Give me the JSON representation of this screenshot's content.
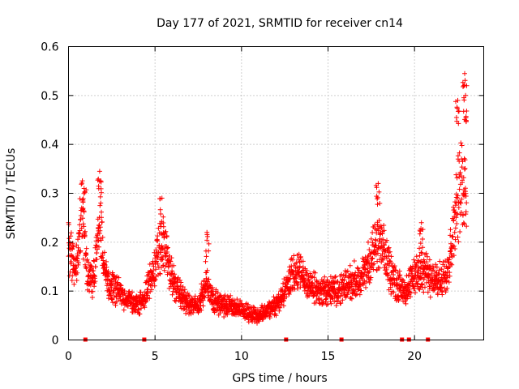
{
  "chart_data": {
    "type": "scatter",
    "title": "Day 177 of 2021, SRMTID for receiver cn14",
    "xlabel": "GPS time / hours",
    "ylabel": "SRMTID / TECUs",
    "xlim": [
      0,
      24
    ],
    "ylim": [
      0,
      0.6
    ],
    "xticks": [
      0,
      5,
      10,
      15,
      20
    ],
    "xtick_labels": [
      "0",
      "5",
      "10",
      "15",
      "20"
    ],
    "yticks": [
      0,
      0.1,
      0.2,
      0.3,
      0.4,
      0.5,
      0.6
    ],
    "ytick_labels": [
      "0",
      "0.1",
      "0.2",
      "0.3",
      "0.4",
      "0.5",
      "0.6"
    ],
    "grid": true,
    "marker": "+",
    "color": "#ff0000",
    "series": [
      {
        "name": "SRMTID",
        "profile": [
          [
            0.0,
            0.19
          ],
          [
            0.2,
            0.17
          ],
          [
            0.4,
            0.14
          ],
          [
            0.6,
            0.2
          ],
          [
            0.75,
            0.27
          ],
          [
            0.9,
            0.22
          ],
          [
            1.1,
            0.12
          ],
          [
            1.4,
            0.12
          ],
          [
            1.6,
            0.17
          ],
          [
            1.8,
            0.25
          ],
          [
            2.0,
            0.16
          ],
          [
            2.3,
            0.11
          ],
          [
            2.8,
            0.1
          ],
          [
            3.2,
            0.09
          ],
          [
            3.6,
            0.08
          ],
          [
            4.0,
            0.07
          ],
          [
            4.4,
            0.09
          ],
          [
            4.8,
            0.13
          ],
          [
            5.2,
            0.18
          ],
          [
            5.6,
            0.19
          ],
          [
            6.0,
            0.12
          ],
          [
            6.5,
            0.09
          ],
          [
            7.0,
            0.07
          ],
          [
            7.5,
            0.07
          ],
          [
            8.0,
            0.12
          ],
          [
            8.4,
            0.08
          ],
          [
            9.0,
            0.07
          ],
          [
            9.5,
            0.07
          ],
          [
            10.0,
            0.06
          ],
          [
            10.5,
            0.055
          ],
          [
            11.0,
            0.05
          ],
          [
            11.5,
            0.06
          ],
          [
            12.0,
            0.07
          ],
          [
            12.5,
            0.1
          ],
          [
            13.0,
            0.14
          ],
          [
            13.5,
            0.13
          ],
          [
            14.0,
            0.11
          ],
          [
            14.5,
            0.1
          ],
          [
            15.0,
            0.1
          ],
          [
            15.5,
            0.1
          ],
          [
            16.0,
            0.11
          ],
          [
            16.5,
            0.12
          ],
          [
            17.0,
            0.13
          ],
          [
            17.5,
            0.17
          ],
          [
            18.0,
            0.2
          ],
          [
            18.5,
            0.15
          ],
          [
            19.0,
            0.11
          ],
          [
            19.5,
            0.1
          ],
          [
            20.0,
            0.13
          ],
          [
            20.5,
            0.15
          ],
          [
            21.0,
            0.12
          ],
          [
            21.5,
            0.12
          ],
          [
            22.0,
            0.16
          ],
          [
            22.4,
            0.27
          ],
          [
            22.8,
            0.33
          ],
          [
            23.0,
            0.3
          ]
        ],
        "spikes": [
          [
            0.9,
            0.31
          ],
          [
            1.8,
            0.345
          ],
          [
            5.4,
            0.29
          ],
          [
            8.0,
            0.22
          ],
          [
            17.9,
            0.32
          ],
          [
            20.4,
            0.24
          ],
          [
            22.5,
            0.49
          ],
          [
            22.9,
            0.545
          ],
          [
            22.95,
            0.5
          ]
        ]
      }
    ],
    "data_gaps_at_zero": [
      1.0,
      4.4,
      12.6,
      15.8,
      19.3,
      19.7,
      20.8
    ]
  }
}
